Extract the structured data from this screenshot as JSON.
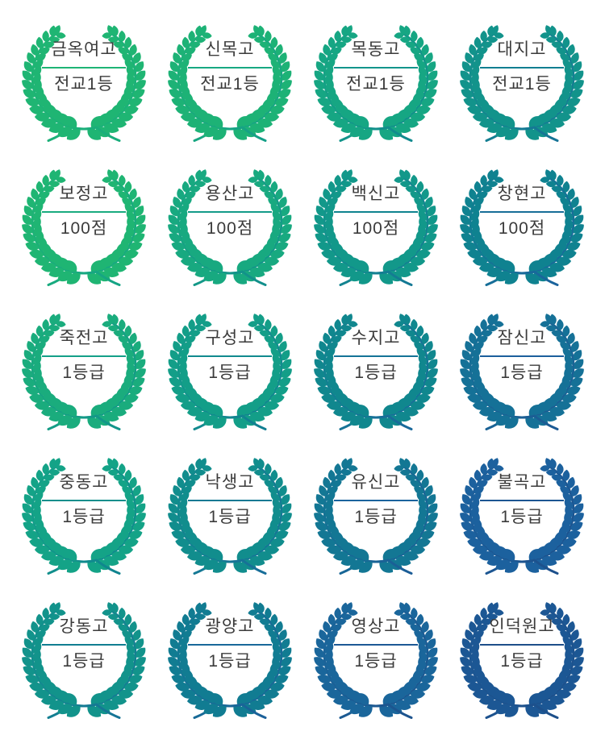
{
  "page": {
    "background": "#ffffff"
  },
  "palette": {
    "text_color": "#3b3b3b",
    "gradient_ramp": [
      {
        "t": 0.0,
        "color": "#1fb573"
      },
      {
        "t": 0.25,
        "color": "#14a387"
      },
      {
        "t": 0.5,
        "color": "#0f8190"
      },
      {
        "t": 0.75,
        "color": "#1c609e"
      },
      {
        "t": 1.0,
        "color": "#1d4e89"
      }
    ]
  },
  "grid": {
    "columns": 4,
    "rows": 5
  },
  "badges": [
    {
      "school": "금옥여고",
      "award": "전교1등"
    },
    {
      "school": "신목고",
      "award": "전교1등"
    },
    {
      "school": "목동고",
      "award": "전교1등"
    },
    {
      "school": "대지고",
      "award": "전교1등"
    },
    {
      "school": "보정고",
      "award": "100점"
    },
    {
      "school": "용산고",
      "award": "100점"
    },
    {
      "school": "백신고",
      "award": "100점"
    },
    {
      "school": "창현고",
      "award": "100점"
    },
    {
      "school": "죽전고",
      "award": "1등급"
    },
    {
      "school": "구성고",
      "award": "1등급"
    },
    {
      "school": "수지고",
      "award": "1등급"
    },
    {
      "school": "잠신고",
      "award": "1등급"
    },
    {
      "school": "중동고",
      "award": "1등급"
    },
    {
      "school": "낙생고",
      "award": "1등급"
    },
    {
      "school": "유신고",
      "award": "1등급"
    },
    {
      "school": "불곡고",
      "award": "1등급"
    },
    {
      "school": "강동고",
      "award": "1등급"
    },
    {
      "school": "광양고",
      "award": "1등급"
    },
    {
      "school": "영상고",
      "award": "1등급"
    },
    {
      "school": "인덕원고",
      "award": "1등급"
    }
  ]
}
